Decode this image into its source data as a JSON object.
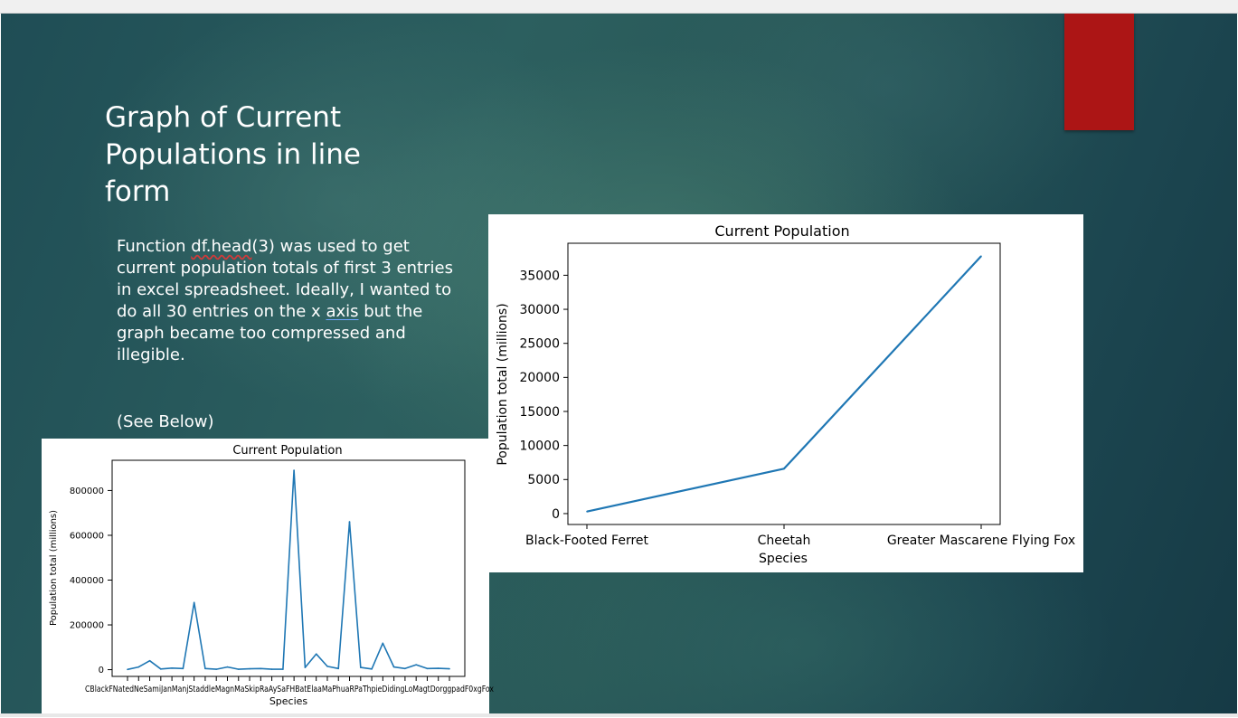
{
  "slide": {
    "title": "Graph of Current Populations in line form",
    "body_parts": {
      "a": "Function ",
      "b": "df.head",
      "c": "(3) was used to get current population totals of first 3 entries in excel spreadsheet. Ideally, I wanted to do all 30 entries on the x ",
      "d": "axis",
      "e": " but the graph became too compressed and illegible."
    },
    "see_below": "(See Below)",
    "accent_color": "#ac1515"
  },
  "chart_data": [
    {
      "type": "line",
      "title": "Current Population",
      "xlabel": "Species",
      "ylabel": "Population total (millions)",
      "ylim": [
        -30000,
        935000
      ],
      "yticks": [
        0,
        200000,
        400000,
        600000,
        800000
      ],
      "x_tick_labels_text": "CBlackFNatedNeSamiJanManjStaddleMagnMaSkipRaAySaFHBatElaaMaPhuaRPaThpieDidingLoMagtDorggpadF0xgFox",
      "series": [
        {
          "values": [
            1000,
            12000,
            40000,
            3000,
            7000,
            5000,
            300000,
            5000,
            2000,
            12000,
            2000,
            4000,
            5000,
            2000,
            2000,
            890000,
            10000,
            70000,
            15000,
            5000,
            660000,
            10000,
            3000,
            118000,
            12000,
            5000,
            22000,
            5000,
            6000,
            4000
          ],
          "color": "#1f77b4"
        }
      ]
    },
    {
      "type": "line",
      "title": "Current Population",
      "xlabel": "Species",
      "ylabel": "Population total (millions)",
      "categories": [
        "Black-Footed Ferret",
        "Cheetah",
        "Greater Mascarene Flying Fox"
      ],
      "ylim": [
        -1600,
        39700
      ],
      "yticks": [
        0,
        5000,
        10000,
        15000,
        20000,
        25000,
        30000,
        35000
      ],
      "series": [
        {
          "values": [
            300,
            6600,
            37800
          ],
          "color": "#1f77b4"
        }
      ]
    }
  ]
}
